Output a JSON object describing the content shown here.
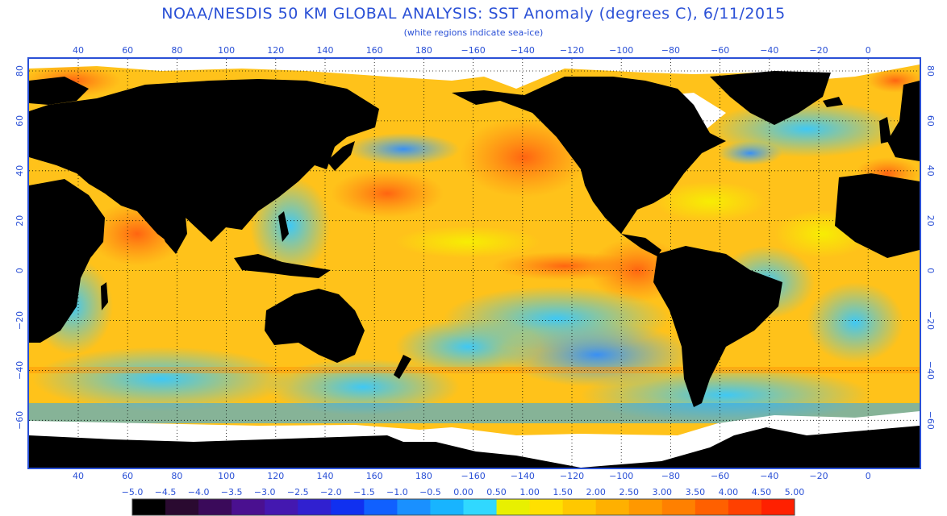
{
  "title": "NOAA/NESDIS 50 KM GLOBAL ANALYSIS: SST Anomaly (degrees C), 6/11/2015",
  "subtitle": "(white regions indicate sea-ice)",
  "lon_labels": [
    "40",
    "60",
    "80",
    "100",
    "120",
    "140",
    "160",
    "180",
    "−160",
    "−140",
    "−120",
    "−100",
    "−80",
    "−60",
    "−40",
    "−20",
    "0"
  ],
  "lat_labels": [
    "80",
    "60",
    "40",
    "20",
    "0",
    "−20",
    "−40",
    "−60"
  ],
  "colorbar_labels": [
    "−5.0",
    "−4.5",
    "−4.0",
    "−3.5",
    "−3.0",
    "−2.5",
    "−2.0",
    "−1.5",
    "−1.0",
    "−0.5",
    "0.00",
    "0.50",
    "1.00",
    "1.50",
    "2.00",
    "2.50",
    "3.00",
    "3.50",
    "4.00",
    "4.50",
    "5.00"
  ],
  "colorbar_colors": [
    "#000000",
    "#2a0a30",
    "#3a0a5a",
    "#4a1090",
    "#4418b0",
    "#3020d0",
    "#1030f0",
    "#1060ff",
    "#1a90ff",
    "#18b4ff",
    "#30d8ff",
    "#e8f000",
    "#ffe000",
    "#ffc800",
    "#ffb000",
    "#ff9800",
    "#ff8000",
    "#ff6000",
    "#ff4000",
    "#ff2000"
  ],
  "colors": {
    "frame": "#2a50d6",
    "land": "#000000",
    "ice": "#ffffff",
    "ocean_base": "#ffc21a"
  }
}
